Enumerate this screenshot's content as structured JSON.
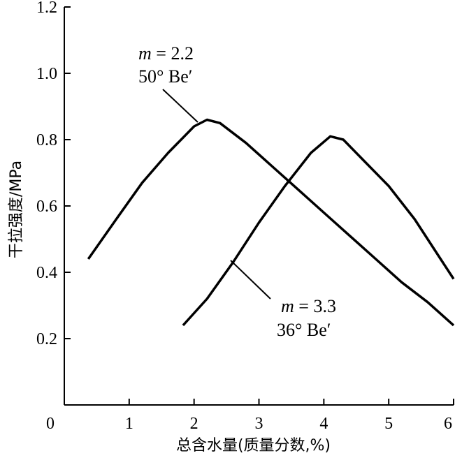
{
  "chart_data": {
    "type": "line",
    "xlabel": "总含水量(质量分数,%)",
    "ylabel": "干拉强度/MPa",
    "xlim": [
      0,
      6
    ],
    "ylim": [
      0,
      1.2
    ],
    "x_ticks": [
      "0",
      "1",
      "2",
      "3",
      "4",
      "5",
      "6"
    ],
    "y_ticks": [
      "0.2",
      "0.4",
      "0.6",
      "0.8",
      "1.0",
      "1.2"
    ],
    "grid": false,
    "series": [
      {
        "x": [
          0.37,
          0.8,
          1.2,
          1.6,
          2.0,
          2.2,
          2.4,
          2.8,
          3.2,
          3.6,
          4.0,
          4.4,
          4.8,
          5.2,
          5.6,
          6.0
        ],
        "y": [
          0.44,
          0.56,
          0.67,
          0.76,
          0.84,
          0.86,
          0.85,
          0.79,
          0.72,
          0.65,
          0.58,
          0.51,
          0.44,
          0.37,
          0.31,
          0.24
        ]
      },
      {
        "x": [
          1.83,
          2.2,
          2.6,
          3.0,
          3.4,
          3.8,
          4.1,
          4.3,
          4.6,
          5.0,
          5.4,
          5.8,
          6.0
        ],
        "y": [
          0.24,
          0.32,
          0.43,
          0.55,
          0.66,
          0.76,
          0.81,
          0.8,
          0.74,
          0.66,
          0.56,
          0.44,
          0.38
        ]
      }
    ],
    "annotations": [
      {
        "line1_m": "m",
        "line1_val": " = 2.2",
        "line2": "50° Be′"
      },
      {
        "line1_m": "m",
        "line1_val": " = 3.3",
        "line2": "36° Be′"
      }
    ]
  }
}
